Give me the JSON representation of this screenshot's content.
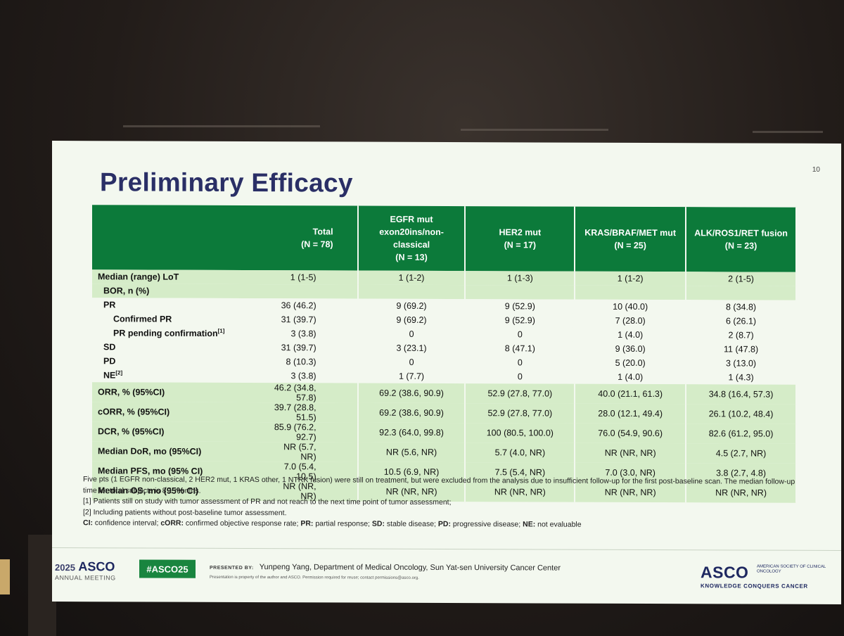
{
  "slide": {
    "number": "10",
    "title": "Preliminary Efficacy"
  },
  "table": {
    "headers": [
      "",
      "Total\n(N = 78)",
      "EGFR mut\nexon20ins/non-\nclassical\n(N = 13)",
      "HER2 mut\n(N = 17)",
      "KRAS/BRAF/MET mut\n(N = 25)",
      "ALK/ROS1/RET fusion\n(N = 23)"
    ],
    "rows": [
      {
        "label": "Median (range) LoT",
        "indent": 0,
        "shade": true,
        "values": [
          "1 (1-5)",
          "1 (1-2)",
          "1 (1-3)",
          "1 (1-2)",
          "2 (1-5)"
        ]
      },
      {
        "label": "BOR, n (%)",
        "indent": 1,
        "shade": true,
        "values": [
          "",
          "",
          "",
          "",
          ""
        ]
      },
      {
        "label": "PR",
        "indent": 1,
        "shade": false,
        "values": [
          "36 (46.2)",
          "9 (69.2)",
          "9 (52.9)",
          "10 (40.0)",
          "8 (34.8)"
        ]
      },
      {
        "label": "Confirmed PR",
        "indent": 2,
        "shade": false,
        "values": [
          "31 (39.7)",
          "9 (69.2)",
          "9 (52.9)",
          "7 (28.0)",
          "6 (26.1)"
        ]
      },
      {
        "label": "PR pending confirmation",
        "sup": "[1]",
        "indent": 2,
        "shade": false,
        "values": [
          "3 (3.8)",
          "0",
          "0",
          "1 (4.0)",
          "2 (8.7)"
        ]
      },
      {
        "label": "SD",
        "indent": 1,
        "shade": false,
        "values": [
          "31 (39.7)",
          "3 (23.1)",
          "8 (47.1)",
          "9 (36.0)",
          "11 (47.8)"
        ]
      },
      {
        "label": "PD",
        "indent": 1,
        "shade": false,
        "values": [
          "8 (10.3)",
          "0",
          "0",
          "5 (20.0)",
          "3 (13.0)"
        ]
      },
      {
        "label": "NE",
        "sup": "[2]",
        "indent": 1,
        "shade": false,
        "values": [
          "3 (3.8)",
          "1 (7.7)",
          "0",
          "1 (4.0)",
          "1 (4.3)"
        ]
      },
      {
        "label": "ORR, % (95%CI)",
        "indent": 0,
        "shade": true,
        "values": [
          "46.2 (34.8, 57.8)",
          "69.2 (38.6, 90.9)",
          "52.9 (27.8, 77.0)",
          "40.0 (21.1, 61.3)",
          "34.8 (16.4, 57.3)"
        ]
      },
      {
        "label": "cORR, % (95%CI)",
        "indent": 0,
        "shade": true,
        "values": [
          "39.7 (28.8, 51.5)",
          "69.2 (38.6, 90.9)",
          "52.9 (27.8, 77.0)",
          "28.0 (12.1, 49.4)",
          "26.1 (10.2, 48.4)"
        ]
      },
      {
        "label": "DCR, % (95%CI)",
        "indent": 0,
        "shade": true,
        "values": [
          "85.9 (76.2, 92.7)",
          "92.3 (64.0, 99.8)",
          "100 (80.5, 100.0)",
          "76.0 (54.9, 90.6)",
          "82.6 (61.2, 95.0)"
        ]
      },
      {
        "label": "Median DoR, mo (95%CI)",
        "indent": 0,
        "shade": true,
        "values": [
          "NR (5.7, NR)",
          "NR (5.6, NR)",
          "5.7 (4.0, NR)",
          "NR (NR, NR)",
          "4.5 (2.7, NR)"
        ]
      },
      {
        "label": "Median PFS, mo (95% CI)",
        "indent": 0,
        "shade": true,
        "values": [
          "7.0 (5.4, 10.5)",
          "10.5 (6.9, NR)",
          "7.5 (5.4, NR)",
          "7.0 (3.0, NR)",
          "3.8 (2.7, 4.8)"
        ]
      },
      {
        "label": "Median OS, mo (95% CI)",
        "indent": 0,
        "shade": true,
        "values": [
          "NR (NR, NR)",
          "NR (NR, NR)",
          "NR (NR, NR)",
          "NR (NR, NR)",
          "NR (NR, NR)"
        ]
      }
    ]
  },
  "notes": {
    "line1": "Five pts (1 EGFR non-classical, 2 HER2 mut, 1 KRAS other, 1 NTRK fusion) were still on treatment, but were excluded from the analysis due to insufficient follow-up for the first post-baseline scan. The median follow-up time for total subjects is 8.1 months.",
    "line2": "[1] Patients still on study with tumor assessment of PR and not reach to the next time point of tumor assessment;",
    "line3": "[2] Including patients without post-baseline tumor assessment.",
    "abbrev": [
      {
        "term": "CI:",
        "def": " confidence interval; "
      },
      {
        "term": "cORR:",
        "def": " confirmed objective response rate; "
      },
      {
        "term": "PR:",
        "def": " partial response; "
      },
      {
        "term": "SD:",
        "def": " stable disease; "
      },
      {
        "term": "PD:",
        "def": " progressive disease; "
      },
      {
        "term": "NE:",
        "def": " not evaluable"
      }
    ]
  },
  "footer": {
    "year": "2025",
    "brand": "ASCO",
    "annual": "ANNUAL MEETING",
    "hashtag": "#ASCO25",
    "presented_by_label": "PRESENTED BY:",
    "presenter": "Yunpeng Yang, Department of Medical Oncology, Sun Yat-sen University Cancer Center",
    "permission": "Presentation is property of the author and ASCO. Permission required for reuse; contact permissions@asco.org.",
    "logo_text": "ASCO",
    "society": "AMERICAN SOCIETY OF CLINICAL ONCOLOGY",
    "tagline": "KNOWLEDGE CONQUERS CANCER"
  },
  "colors": {
    "header_green": "#0c7a3a",
    "row_shade": "#d5ecc8",
    "title_navy": "#2a2f66",
    "hashtag_green": "#19853f"
  }
}
